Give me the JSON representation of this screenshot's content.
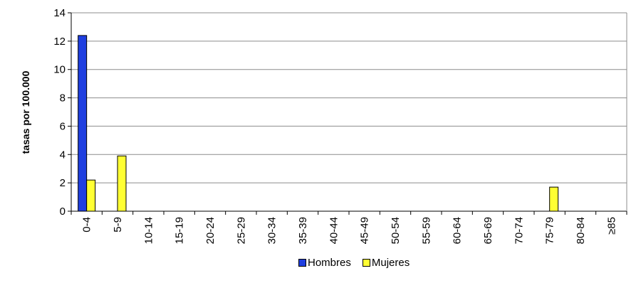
{
  "chart_data": {
    "type": "bar",
    "categories": [
      "0-4",
      "5-9",
      "10-14",
      "15-19",
      "20-24",
      "25-29",
      "30-34",
      "35-39",
      "40-44",
      "45-49",
      "50-54",
      "55-59",
      "60-64",
      "65-69",
      "70-74",
      "75-79",
      "80-84",
      "≥85"
    ],
    "series": [
      {
        "name": "Hombres",
        "color": "#1f3fe0",
        "values": [
          12.4,
          0,
          0,
          0,
          0,
          0,
          0,
          0,
          0,
          0,
          0,
          0,
          0,
          0,
          0,
          0,
          0,
          0
        ]
      },
      {
        "name": "Mujeres",
        "color": "#ffff33",
        "values": [
          2.2,
          3.9,
          0,
          0,
          0,
          0,
          0,
          0,
          0,
          0,
          0,
          0,
          0,
          0,
          0,
          1.7,
          0,
          0
        ]
      }
    ],
    "ylabel": "tasas por 100.000",
    "xlabel": "",
    "ylim": [
      0,
      14
    ],
    "yticks": [
      "0",
      "2",
      "4",
      "6",
      "8",
      "10",
      "12",
      "14"
    ],
    "grid": true,
    "legend_position": "bottom"
  }
}
